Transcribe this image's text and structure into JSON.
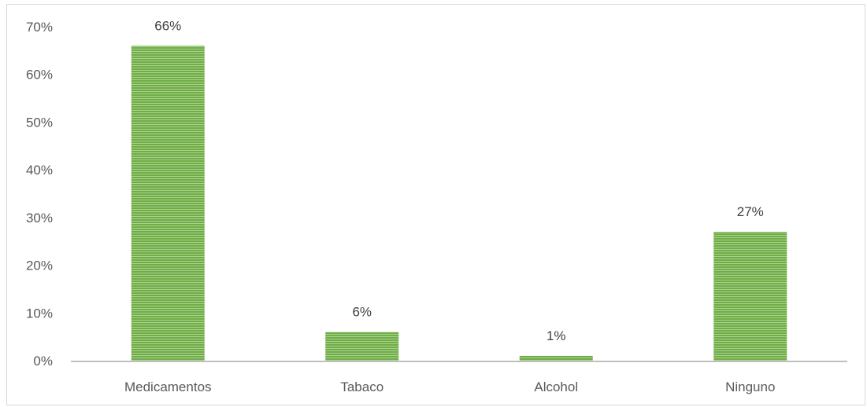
{
  "chart_data": {
    "type": "bar",
    "categories": [
      "Medicamentos",
      "Tabaco",
      "Alcohol",
      "Ninguno"
    ],
    "values": [
      66,
      6,
      1,
      27
    ],
    "data_labels": [
      "66%",
      "6%",
      "1%",
      "27%"
    ],
    "y_ticks": [
      "0%",
      "10%",
      "20%",
      "30%",
      "40%",
      "50%",
      "60%",
      "70%"
    ],
    "ylim": [
      0,
      70
    ],
    "grid": false,
    "legend": "none",
    "title": "",
    "xlabel": "",
    "ylabel": "",
    "bar_color": "#70ad47",
    "bar_stripe_color": "#a9d18e",
    "axis_color": "#bfbfbf"
  }
}
